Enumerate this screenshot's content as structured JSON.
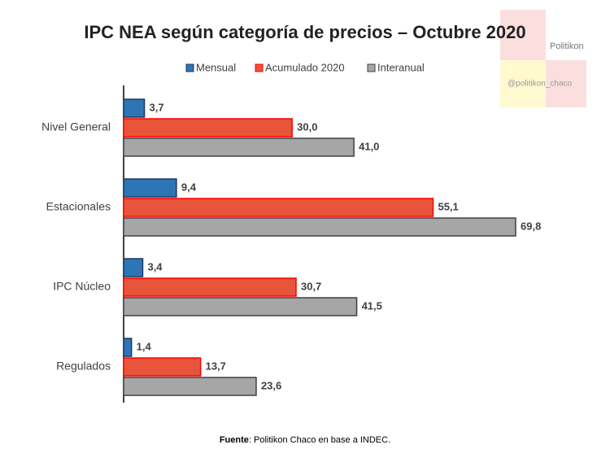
{
  "chart_data": {
    "type": "hbar",
    "title": "IPC NEA según categoría de precios – Octubre 2020",
    "categories": [
      "Nivel General",
      "Estacionales",
      "IPC Núcleo",
      "Regulados"
    ],
    "series": [
      {
        "name": "Mensual",
        "color": "#2e75b6",
        "border": "#1f3864",
        "values": [
          3.7,
          9.4,
          3.4,
          1.4
        ],
        "value_labels": [
          "3,7",
          "9,4",
          "3,4",
          "1,4"
        ]
      },
      {
        "name": "Acumulado 2020",
        "color": "#e8553a",
        "border": "#ff0000",
        "values": [
          30.0,
          55.1,
          30.7,
          13.7
        ],
        "value_labels": [
          "30,0",
          "55,1",
          "30,7",
          "13,7"
        ]
      },
      {
        "name": "Interanual",
        "color": "#a6a6a6",
        "border": "#404040",
        "values": [
          41.0,
          69.8,
          41.5,
          23.6
        ],
        "value_labels": [
          "41,0",
          "69,8",
          "41,5",
          "23,6"
        ]
      }
    ],
    "legend": "top",
    "source_label": "Fuente",
    "source": ": Politikon Chaco en base a INDEC.",
    "watermark": {
      "name": "Politikon",
      "handle": "@politikon_chaco"
    }
  }
}
